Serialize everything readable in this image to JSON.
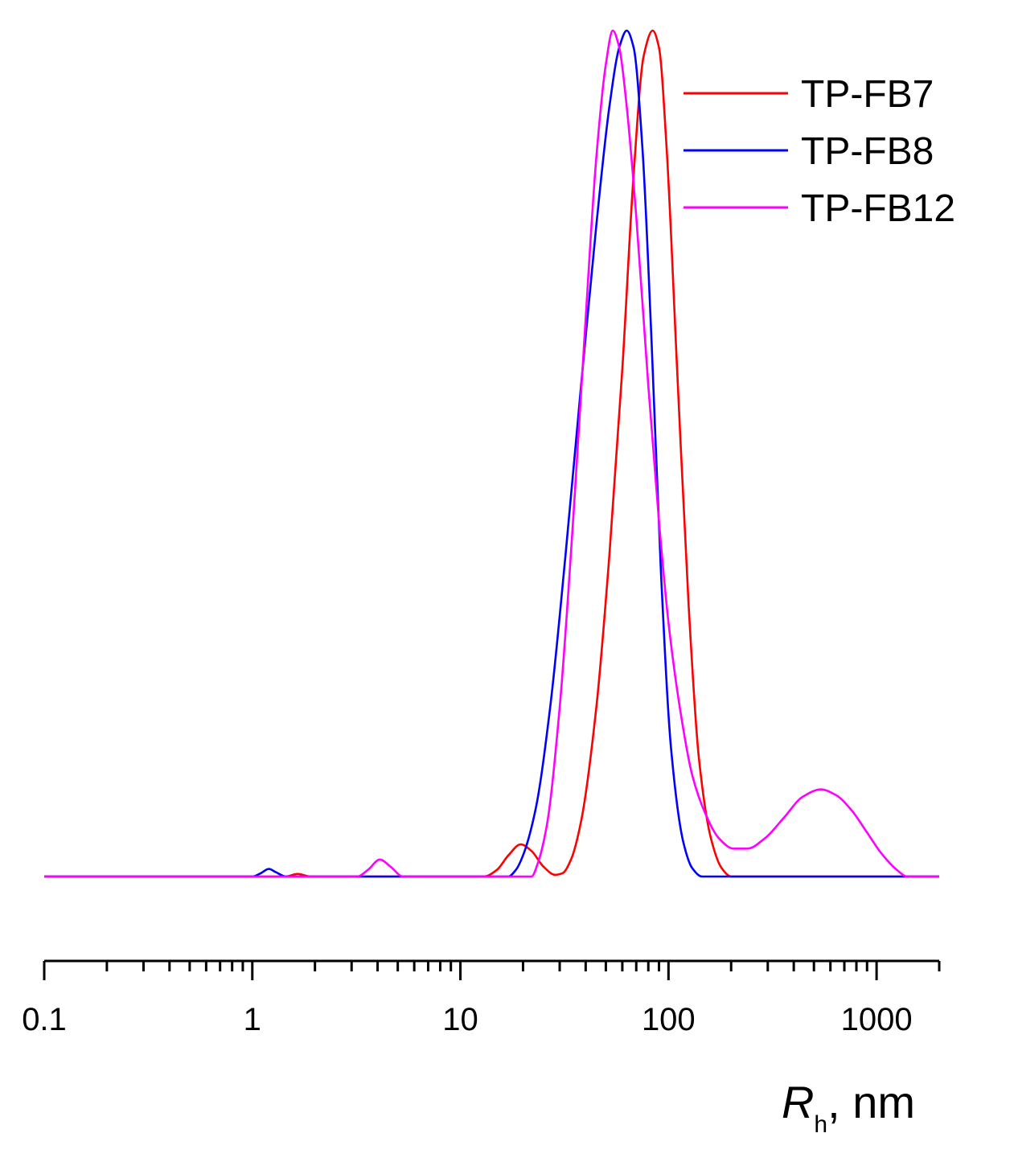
{
  "chart_data": {
    "type": "line",
    "title": "",
    "xscale": "log",
    "xlim": [
      0.1,
      2000
    ],
    "ylim": [
      0,
      1.0
    ],
    "grid": false,
    "legend_position": "top-right",
    "xlabel": {
      "symbol": "R",
      "subscript": "h",
      "suffix": ", nm"
    },
    "x_tick_labels": [
      "0.1",
      "1",
      "10",
      "100",
      "1000"
    ],
    "series": [
      {
        "name": "TP-FB7",
        "color": "#ff0000",
        "points": [
          [
            0.1,
            0
          ],
          [
            1.45,
            0
          ],
          [
            1.65,
            0.003
          ],
          [
            1.9,
            0
          ],
          [
            13,
            0
          ],
          [
            15,
            0.008
          ],
          [
            17,
            0.025
          ],
          [
            19.5,
            0.038
          ],
          [
            22,
            0.03
          ],
          [
            25,
            0.012
          ],
          [
            28.5,
            0.002
          ],
          [
            31,
            0.004
          ],
          [
            34,
            0.02
          ],
          [
            38,
            0.065
          ],
          [
            45,
            0.2
          ],
          [
            52,
            0.38
          ],
          [
            60,
            0.6
          ],
          [
            68,
            0.83
          ],
          [
            76,
            0.97
          ],
          [
            84,
            1.0
          ],
          [
            90,
            0.98
          ],
          [
            98,
            0.86
          ],
          [
            110,
            0.6
          ],
          [
            125,
            0.32
          ],
          [
            140,
            0.14
          ],
          [
            160,
            0.045
          ],
          [
            180,
            0.01
          ],
          [
            200,
            0
          ],
          [
            2000,
            0
          ]
        ]
      },
      {
        "name": "TP-FB8",
        "color": "#0000ff",
        "points": [
          [
            0.1,
            0
          ],
          [
            1.0,
            0
          ],
          [
            1.1,
            0.004
          ],
          [
            1.2,
            0.009
          ],
          [
            1.3,
            0.005
          ],
          [
            1.45,
            0
          ],
          [
            17,
            0
          ],
          [
            18.5,
            0.008
          ],
          [
            20,
            0.025
          ],
          [
            23,
            0.08
          ],
          [
            27,
            0.2
          ],
          [
            32,
            0.38
          ],
          [
            38,
            0.58
          ],
          [
            45,
            0.77
          ],
          [
            52,
            0.91
          ],
          [
            58,
            0.98
          ],
          [
            63,
            1.0
          ],
          [
            68,
            0.98
          ],
          [
            75,
            0.86
          ],
          [
            83,
            0.63
          ],
          [
            92,
            0.36
          ],
          [
            103,
            0.15
          ],
          [
            118,
            0.04
          ],
          [
            130,
            0.01
          ],
          [
            145,
            0
          ],
          [
            2000,
            0
          ]
        ]
      },
      {
        "name": "TP-FB12",
        "color": "#ff00ff",
        "points": [
          [
            0.1,
            0
          ],
          [
            3.2,
            0
          ],
          [
            3.6,
            0.008
          ],
          [
            4.1,
            0.02
          ],
          [
            4.6,
            0.012
          ],
          [
            5.3,
            0
          ],
          [
            22,
            0
          ],
          [
            23.5,
            0.015
          ],
          [
            26,
            0.06
          ],
          [
            30,
            0.2
          ],
          [
            35,
            0.43
          ],
          [
            40,
            0.66
          ],
          [
            45,
            0.85
          ],
          [
            50,
            0.96
          ],
          [
            54,
            1.0
          ],
          [
            58,
            0.98
          ],
          [
            63,
            0.91
          ],
          [
            70,
            0.78
          ],
          [
            80,
            0.58
          ],
          [
            90,
            0.42
          ],
          [
            100,
            0.3
          ],
          [
            115,
            0.19
          ],
          [
            130,
            0.12
          ],
          [
            150,
            0.075
          ],
          [
            175,
            0.045
          ],
          [
            205,
            0.033
          ],
          [
            240,
            0.033
          ],
          [
            290,
            0.045
          ],
          [
            360,
            0.07
          ],
          [
            440,
            0.094
          ],
          [
            540,
            0.103
          ],
          [
            640,
            0.096
          ],
          [
            760,
            0.078
          ],
          [
            900,
            0.052
          ],
          [
            1050,
            0.028
          ],
          [
            1250,
            0.008
          ],
          [
            1400,
            0
          ],
          [
            2000,
            0
          ]
        ]
      }
    ]
  }
}
